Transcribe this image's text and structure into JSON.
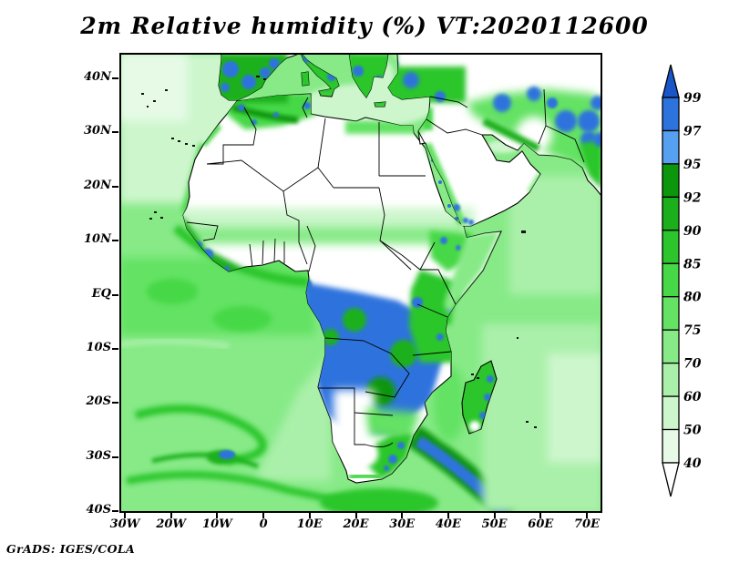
{
  "title": "2m Relative humidity (%) VT:2020112600",
  "footer": "GrADS: IGES/COLA",
  "axes": {
    "x_ticks": [
      "30W",
      "20W",
      "10W",
      "0",
      "10E",
      "20E",
      "30E",
      "40E",
      "50E",
      "60E",
      "70E"
    ],
    "y_ticks": [
      "40N",
      "30N",
      "20N",
      "10N",
      "EQ",
      "10S",
      "20S",
      "30S",
      "40S"
    ]
  },
  "colorbar": {
    "levels": [
      "99",
      "97",
      "95",
      "92",
      "90",
      "85",
      "80",
      "75",
      "70",
      "60",
      "50",
      "40"
    ],
    "colors": [
      "#1a56c8",
      "#2d73dd",
      "#55a0f0",
      "#0c960c",
      "#1bb01b",
      "#2cc62c",
      "#46d846",
      "#64e264",
      "#87ea87",
      "#aaf0aa",
      "#cdf6cd",
      "#e6fae6",
      "#ffffff"
    ]
  },
  "chart_data": {
    "type": "heatmap",
    "title": "2m Relative humidity (%) VT:2020112600",
    "variable": "2m Relative humidity",
    "units": "%",
    "valid_time_label": "VT:2020112600",
    "x_axis": {
      "tick_labels": [
        "30W",
        "20W",
        "10W",
        "0",
        "10E",
        "20E",
        "30E",
        "40E",
        "50E",
        "60E",
        "70E"
      ]
    },
    "y_axis": {
      "tick_labels": [
        "40N",
        "30N",
        "20N",
        "10N",
        "EQ",
        "10S",
        "20S",
        "30S",
        "40S"
      ]
    },
    "shade_levels": [
      40,
      50,
      60,
      70,
      75,
      80,
      85,
      90,
      92,
      95,
      97,
      99
    ],
    "legend_position": "right-vertical-colorbar",
    "palette": {
      "lt40": "#ffffff",
      "40": "#e6fae6",
      "50": "#cdf6cd",
      "60": "#aaf0aa",
      "70": "#87ea87",
      "75": "#64e264",
      "80": "#46d846",
      "85": "#2cc62c",
      "90": "#1bb01b",
      "92": "#0c960c",
      "95": "#55a0f0",
      "97": "#2d73dd",
      "gt99": "#1a56c8"
    },
    "attribution": "GrADS: IGES/COLA"
  }
}
